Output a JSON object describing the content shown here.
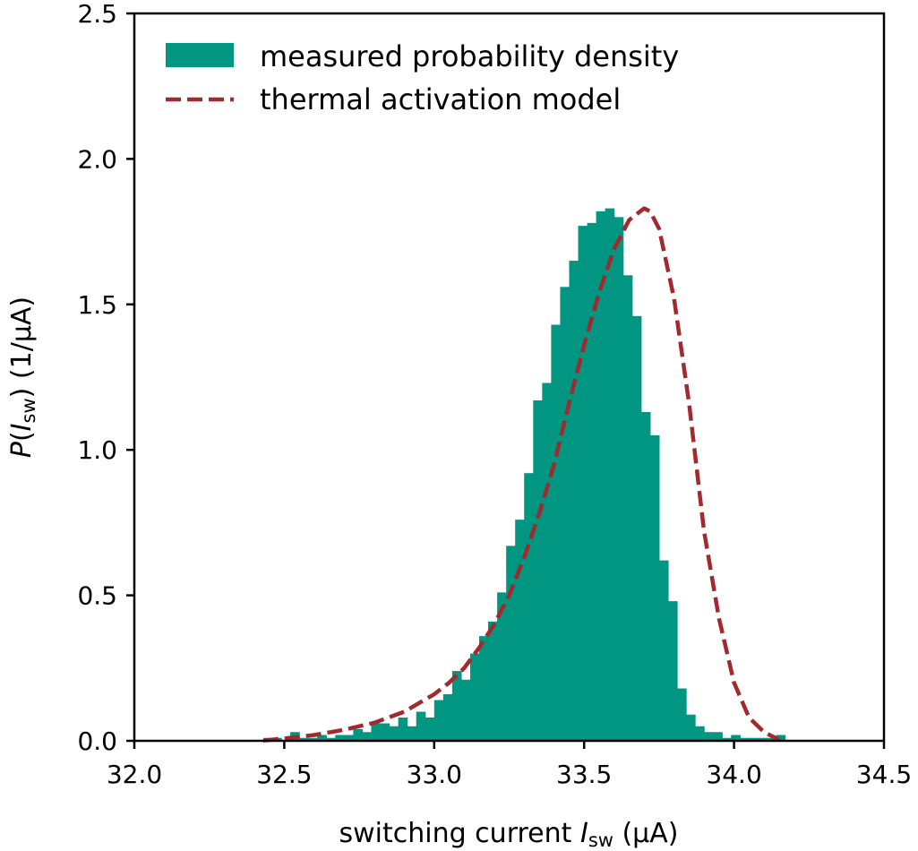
{
  "colors": {
    "histogram": "#009682",
    "model": "#a2292e",
    "axis": "#000000",
    "background": "#ffffff"
  },
  "chart_data": {
    "type": "bar",
    "xlabel": {
      "text": "switching current ",
      "var": "I",
      "sub": "sw",
      "unit": " (μA)"
    },
    "ylabel": {
      "var": "P",
      "open": "(",
      "inner_var": "I",
      "sub": "sw",
      "close": ")",
      "unit": " (1/μA)"
    },
    "xlim": [
      32.0,
      34.5
    ],
    "ylim": [
      0.0,
      2.5
    ],
    "xticks": [
      32.0,
      32.5,
      33.0,
      33.5,
      34.0,
      34.5
    ],
    "xtick_labels": [
      "32.0",
      "32.5",
      "33.0",
      "33.5",
      "34.0",
      "34.5"
    ],
    "yticks": [
      0.0,
      0.5,
      1.0,
      1.5,
      2.0,
      2.5
    ],
    "ytick_labels": [
      "0.0",
      "0.5",
      "1.0",
      "1.5",
      "2.0",
      "2.5"
    ],
    "grid": false,
    "legend_position": "top-left",
    "series": [
      {
        "name": "measured probability density",
        "type": "histogram",
        "bin_edges": [
          32.43,
          32.46,
          32.49,
          32.52,
          32.55,
          32.58,
          32.61,
          32.64,
          32.67,
          32.7,
          32.73,
          32.76,
          32.79,
          32.82,
          32.85,
          32.88,
          32.91,
          32.94,
          32.97,
          33.0,
          33.03,
          33.06,
          33.09,
          33.12,
          33.15,
          33.18,
          33.21,
          33.24,
          33.27,
          33.3,
          33.33,
          33.36,
          33.39,
          33.42,
          33.45,
          33.48,
          33.51,
          33.54,
          33.57,
          33.6,
          33.63,
          33.66,
          33.69,
          33.72,
          33.75,
          33.78,
          33.81,
          33.84,
          33.87,
          33.9,
          33.93,
          33.96,
          33.99,
          34.02,
          34.05,
          34.08,
          34.11,
          34.14,
          34.17
        ],
        "values": [
          0.01,
          0.01,
          0.0,
          0.03,
          0.01,
          0.01,
          0.02,
          0.01,
          0.02,
          0.02,
          0.04,
          0.03,
          0.06,
          0.06,
          0.05,
          0.08,
          0.05,
          0.1,
          0.08,
          0.14,
          0.16,
          0.24,
          0.21,
          0.3,
          0.36,
          0.41,
          0.51,
          0.67,
          0.76,
          0.92,
          1.17,
          1.23,
          1.43,
          1.56,
          1.65,
          1.77,
          1.78,
          1.82,
          1.83,
          1.8,
          1.6,
          1.46,
          1.13,
          1.05,
          0.62,
          0.48,
          0.18,
          0.09,
          0.05,
          0.03,
          0.03,
          0.01,
          0.02,
          0.01,
          0.01,
          0.01,
          0.01,
          0.02
        ]
      },
      {
        "name": "thermal activation model",
        "type": "line",
        "style": "dashed",
        "x": [
          32.43,
          32.5,
          32.6,
          32.7,
          32.8,
          32.9,
          33.0,
          33.05,
          33.1,
          33.15,
          33.2,
          33.25,
          33.3,
          33.35,
          33.4,
          33.45,
          33.5,
          33.55,
          33.6,
          33.65,
          33.7,
          33.72,
          33.75,
          33.8,
          33.85,
          33.9,
          33.95,
          34.0,
          34.05,
          34.1,
          34.15
        ],
        "y": [
          0.001,
          0.008,
          0.02,
          0.038,
          0.062,
          0.1,
          0.16,
          0.2,
          0.25,
          0.32,
          0.4,
          0.5,
          0.63,
          0.78,
          0.95,
          1.16,
          1.36,
          1.54,
          1.69,
          1.79,
          1.83,
          1.82,
          1.76,
          1.52,
          1.16,
          0.72,
          0.42,
          0.2,
          0.08,
          0.03,
          0.004
        ]
      }
    ]
  }
}
